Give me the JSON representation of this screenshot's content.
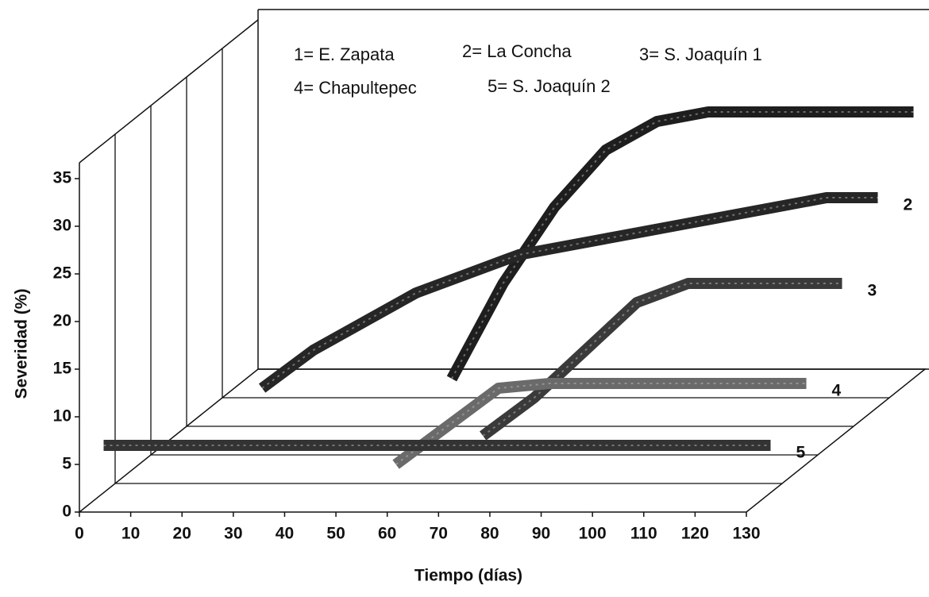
{
  "chart_data": {
    "type": "ribbon3d",
    "xlabel": "Tiempo (días)",
    "ylabel": "Severidad (%)",
    "x": [
      0,
      10,
      20,
      30,
      40,
      50,
      60,
      70,
      80,
      90,
      100,
      110,
      120,
      130
    ],
    "series": [
      {
        "name": "1= E. Zapata",
        "label": "1",
        "color": "#1e1e1e",
        "values": [
          null,
          null,
          null,
          null,
          0,
          10,
          18,
          24,
          27,
          28,
          28,
          28,
          28,
          28
        ]
      },
      {
        "name": "2= La Concha",
        "label": "2",
        "color": "#262626",
        "values": [
          null,
          2,
          6,
          9,
          12,
          14,
          16,
          17,
          18,
          19,
          20,
          21,
          22,
          22
        ]
      },
      {
        "name": "3= S. Joaquín 1",
        "label": "3",
        "color": "#3a3a3a",
        "values": [
          null,
          null,
          null,
          null,
          null,
          null,
          0,
          4,
          9,
          14,
          16,
          16,
          16,
          16
        ]
      },
      {
        "name": "4= Chapultepec",
        "label": "4",
        "color": "#6a6a6a",
        "values": [
          null,
          null,
          null,
          null,
          null,
          0,
          4,
          8,
          8.5,
          8.5,
          8.5,
          8.5,
          8.5,
          8.5
        ]
      },
      {
        "name": "5= S. Joaquín 2",
        "label": "5",
        "color": "#333333",
        "values": [
          5,
          5,
          5,
          5,
          5,
          5,
          5,
          5,
          5,
          5,
          5,
          5,
          5,
          5
        ]
      }
    ],
    "xlim": [
      0,
      130
    ],
    "xticks": [
      0,
      10,
      20,
      30,
      40,
      50,
      60,
      70,
      80,
      90,
      100,
      110,
      120,
      130
    ],
    "ylim": [
      0,
      35
    ],
    "yticks": [
      0,
      5,
      10,
      15,
      20,
      25,
      30,
      35
    ]
  }
}
